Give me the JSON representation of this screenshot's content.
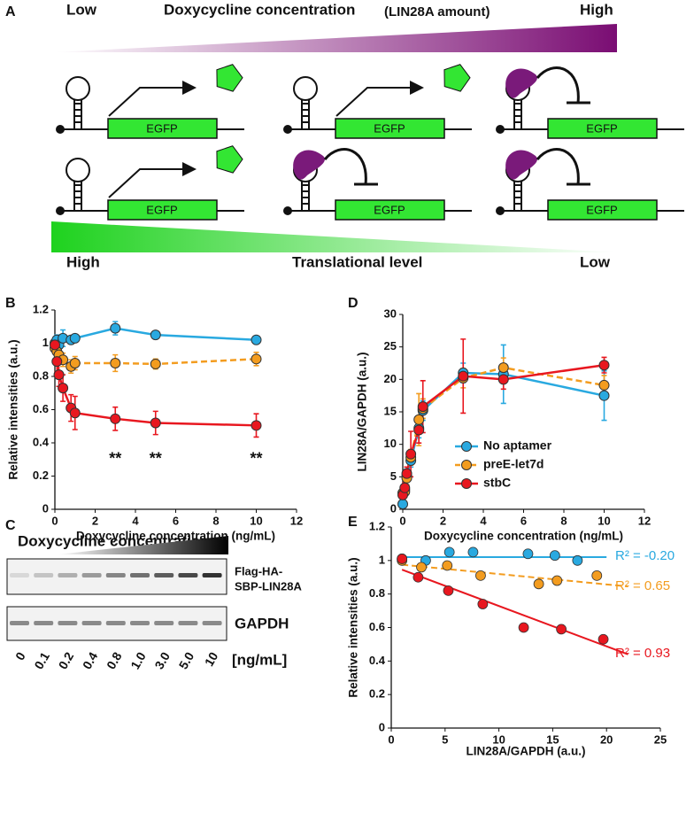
{
  "schematic": {
    "label": "A",
    "top_low": "Low",
    "top_title": "Doxycycline concentration",
    "top_subtitle": "(LIN28A amount)",
    "top_high": "High",
    "constructs": [
      "EGFP",
      "EGFP",
      "EGFP",
      "EGFP",
      "EGFP",
      "EGFP"
    ],
    "bottom_high": "High",
    "bottom_title": "Translational level",
    "bottom_low": "Low"
  },
  "blot": {
    "label": "C",
    "title": "Doxycycline concentration",
    "row1_label": [
      "Flag-HA-",
      "SBP-LIN28A"
    ],
    "row2_label": "GAPDH",
    "lanes": [
      "0",
      "0.1",
      "0.2",
      "0.4",
      "0.8",
      "1.0",
      "3.0",
      "5.0",
      "10"
    ],
    "unit": "[ng/mL]"
  },
  "chart_data": [
    {
      "type": "line",
      "panel_label": "B",
      "ylabel": "Relative intensities (a.u.)",
      "xlabel": "Doxycycline concentration (ng/mL)",
      "x": [
        0,
        0.1,
        0.2,
        0.4,
        0.8,
        1.0,
        3.0,
        5.0,
        10
      ],
      "series": [
        {
          "color": "#29a9e0",
          "dash": false,
          "values": [
            1.0,
            1.02,
            0.99,
            1.03,
            1.02,
            1.03,
            1.09,
            1.05,
            1.02
          ],
          "errors": [
            0.02,
            0.03,
            0.03,
            0.05,
            0.02,
            0.02,
            0.04,
            0.01,
            0.02
          ]
        },
        {
          "color": "#f39c1f",
          "dash": true,
          "values": [
            0.97,
            0.95,
            0.93,
            0.9,
            0.86,
            0.88,
            0.88,
            0.875,
            0.905
          ],
          "errors": [
            0.02,
            0.03,
            0.04,
            0.04,
            0.04,
            0.04,
            0.05,
            0.03,
            0.04
          ]
        },
        {
          "color": "#e8171f",
          "dash": false,
          "values": [
            0.99,
            0.89,
            0.81,
            0.73,
            0.61,
            0.58,
            0.545,
            0.52,
            0.505
          ],
          "errors": [
            0.02,
            0.06,
            0.07,
            0.08,
            0.08,
            0.1,
            0.07,
            0.07,
            0.07
          ]
        }
      ],
      "annotations": [
        "**",
        "**",
        "**"
      ],
      "xlim": [
        0,
        12
      ],
      "xticks": [
        0,
        2,
        4,
        6,
        8,
        10,
        12
      ],
      "ylim": [
        0,
        1.2
      ],
      "yticks": [
        0,
        0.2,
        0.4,
        0.6,
        0.8,
        1,
        1.2
      ]
    },
    {
      "type": "line",
      "panel_label": "D",
      "ylabel": "LIN28A/GAPDH (a.u.)",
      "xlabel": "Doxycycline concentration (ng/mL)",
      "x": [
        0,
        0.1,
        0.2,
        0.4,
        0.8,
        1.0,
        3.0,
        5.0,
        10
      ],
      "series": [
        {
          "name": "No aptamer",
          "color": "#29a9e0",
          "dash": false,
          "values": [
            0.8,
            3.0,
            5.2,
            7.5,
            12.5,
            15.2,
            21.0,
            20.8,
            17.5
          ],
          "errors": [
            0.3,
            1.0,
            1.0,
            1.0,
            1.5,
            1.5,
            1.5,
            4.5,
            3.8
          ]
        },
        {
          "name": "preE-let7d",
          "color": "#f39c1f",
          "dash": true,
          "values": [
            2.5,
            2.7,
            4.8,
            8.0,
            13.8,
            15.5,
            20.2,
            21.8,
            19.1
          ],
          "errors": [
            0.5,
            0.8,
            1.0,
            1.2,
            4.0,
            1.5,
            1.5,
            1.5,
            1.5
          ]
        },
        {
          "name": "stbC",
          "color": "#e8171f",
          "dash": false,
          "values": [
            2.2,
            3.3,
            5.5,
            8.5,
            12.2,
            15.8,
            20.5,
            20.0,
            22.2
          ],
          "errors": [
            0.5,
            0.8,
            1.0,
            3.5,
            2.0,
            4.0,
            5.7,
            1.5,
            1.2
          ]
        }
      ],
      "legend": "lower right",
      "xlim": [
        0,
        12
      ],
      "xticks": [
        0,
        2,
        4,
        6,
        8,
        10,
        12
      ],
      "ylim": [
        0,
        30
      ],
      "yticks": [
        0,
        5,
        10,
        15,
        20,
        25,
        30
      ]
    },
    {
      "type": "scatter",
      "panel_label": "E",
      "ylabel": "Relative intensities (a.u.)",
      "xlabel": "LIN28A/GAPDH (a.u.)",
      "series": [
        {
          "color": "#29a9e0",
          "dash": false,
          "x": [
            1.0,
            3.2,
            5.4,
            7.6,
            12.7,
            15.2,
            17.3
          ],
          "values": [
            1.01,
            1.0,
            1.05,
            1.05,
            1.04,
            1.03,
            1.0
          ],
          "fit_x": [
            1,
            20
          ],
          "fit_y": [
            1.02,
            1.02
          ],
          "fit_label": "R² = -0.20"
        },
        {
          "color": "#f39c1f",
          "dash": true,
          "x": [
            1.0,
            2.8,
            5.2,
            8.3,
            13.7,
            15.4,
            19.1
          ],
          "values": [
            1.0,
            0.96,
            0.97,
            0.91,
            0.86,
            0.88,
            0.91
          ],
          "fit_x": [
            1,
            22
          ],
          "fit_y": [
            0.975,
            0.845
          ],
          "fit_label": "R² = 0.65"
        },
        {
          "color": "#e8171f",
          "dash": false,
          "x": [
            1.0,
            2.5,
            5.3,
            8.5,
            12.3,
            15.8,
            19.7
          ],
          "values": [
            1.01,
            0.9,
            0.82,
            0.74,
            0.6,
            0.59,
            0.53
          ],
          "fit_x": [
            1,
            22
          ],
          "fit_y": [
            0.945,
            0.44
          ],
          "fit_label": "R² = 0.93"
        }
      ],
      "xlim": [
        0,
        25
      ],
      "xticks": [
        0,
        5,
        10,
        15,
        20,
        25
      ],
      "ylim": [
        0,
        1.2
      ],
      "yticks": [
        0,
        0.2,
        0.4,
        0.6,
        0.8,
        1,
        1.2
      ]
    }
  ]
}
